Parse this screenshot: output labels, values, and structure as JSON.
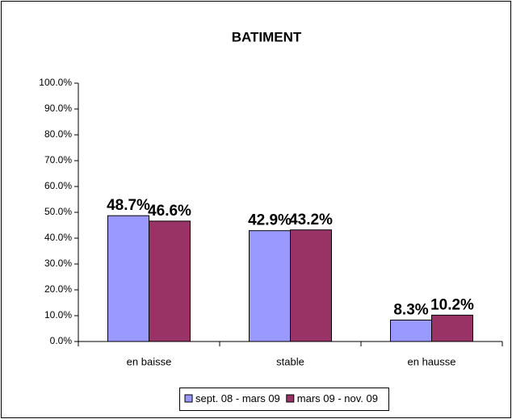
{
  "chart_data": {
    "type": "bar",
    "title": "BATIMENT",
    "categories": [
      "en baisse",
      "stable",
      "en hausse"
    ],
    "series": [
      {
        "name": "sept. 08 - mars 09",
        "color": "#9999ff",
        "values": [
          48.7,
          42.9,
          8.3
        ],
        "value_labels": [
          "48.7%",
          "42.9%",
          "8.3%"
        ]
      },
      {
        "name": "mars 09 - nov. 09",
        "color": "#993366",
        "values": [
          46.6,
          43.2,
          10.2
        ],
        "value_labels": [
          "46.6%",
          "43.2%",
          "10.2%"
        ]
      }
    ],
    "ylim": [
      0,
      100
    ],
    "yticks": [
      {
        "value": 0,
        "label": "0.0%"
      },
      {
        "value": 10,
        "label": "10.0%"
      },
      {
        "value": 20,
        "label": "20.0%"
      },
      {
        "value": 30,
        "label": "30.0%"
      },
      {
        "value": 40,
        "label": "40.0%"
      },
      {
        "value": 50,
        "label": "50.0%"
      },
      {
        "value": 60,
        "label": "60.0%"
      },
      {
        "value": 70,
        "label": "70.0%"
      },
      {
        "value": 80,
        "label": "80.0%"
      },
      {
        "value": 90,
        "label": "90.0%"
      },
      {
        "value": 100,
        "label": "100.0%"
      }
    ],
    "grid": false,
    "legend": "bottom"
  }
}
